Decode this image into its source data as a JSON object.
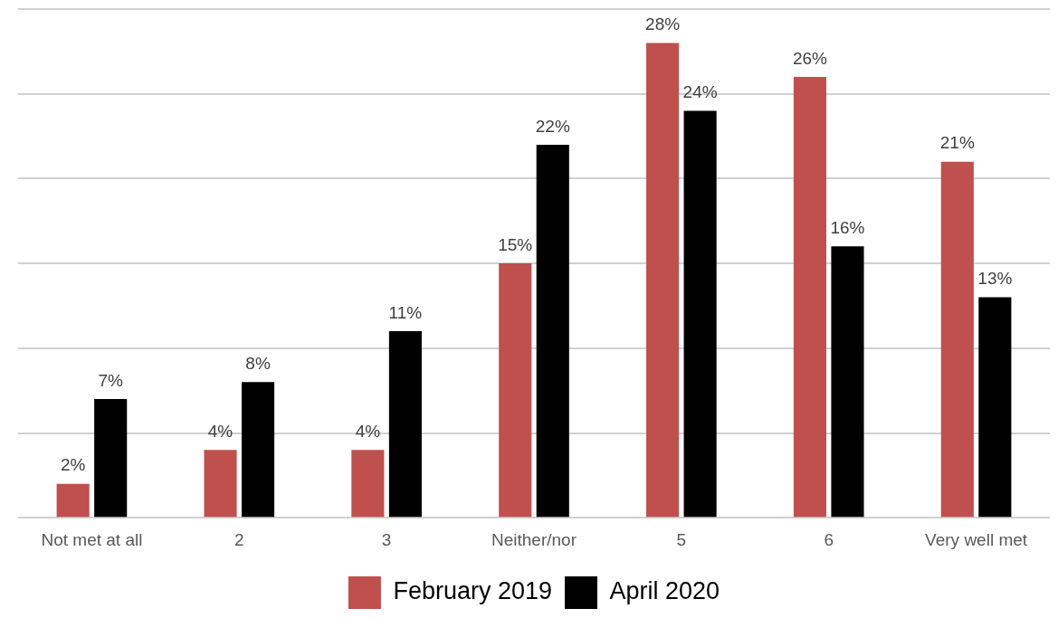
{
  "chart_data": {
    "type": "bar",
    "categories": [
      "Not met at all",
      "2",
      "3",
      "Neither/nor",
      "5",
      "6",
      "Very well met"
    ],
    "series": [
      {
        "name": "February 2019",
        "color": "#c0504d",
        "values": [
          2,
          4,
          4,
          15,
          28,
          26,
          21
        ],
        "value_labels": [
          "2%",
          "4%",
          "4%",
          "15%",
          "28%",
          "26%",
          "21%"
        ]
      },
      {
        "name": "April 2020",
        "color": "#000000",
        "values": [
          7,
          8,
          11,
          22,
          24,
          16,
          13
        ],
        "value_labels": [
          "7%",
          "8%",
          "11%",
          "22%",
          "24%",
          "16%",
          "13%"
        ]
      }
    ],
    "ylim": [
      0,
      30
    ],
    "yticks": [
      {
        "value": 0,
        "label": null
      },
      {
        "value": 5,
        "label": null
      },
      {
        "value": 10,
        "label": null
      },
      {
        "value": 15,
        "label": null
      },
      {
        "value": 20,
        "label": null
      },
      {
        "value": 25,
        "label": null
      },
      {
        "value": 30,
        "label": null
      }
    ],
    "tick_labels": "x",
    "grid": "y",
    "legend": "bottom"
  }
}
